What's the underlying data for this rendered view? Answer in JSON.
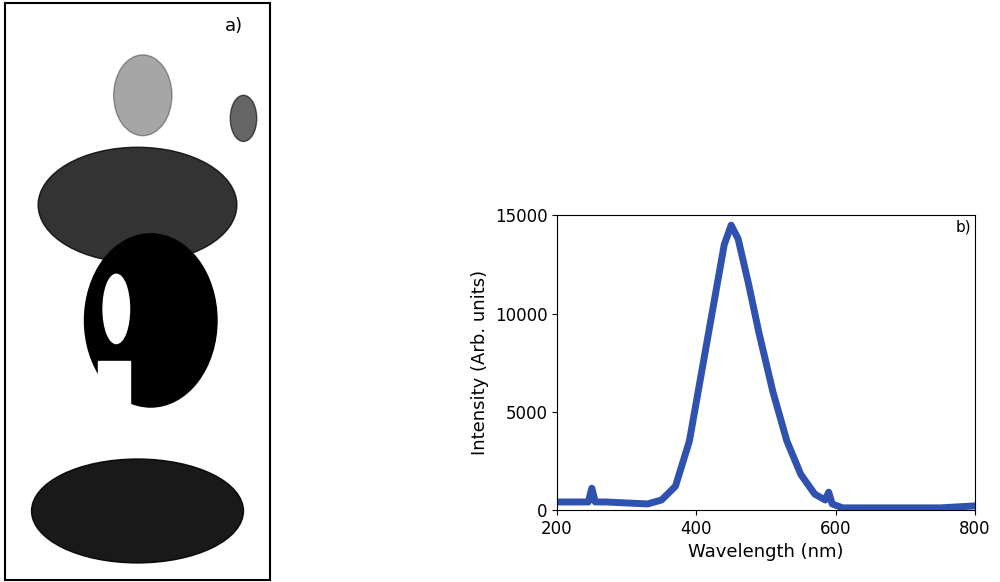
{
  "chart_data": [
    {
      "type": "image",
      "annotations": [
        "a)"
      ]
    },
    {
      "type": "line",
      "annotations": [
        "b)"
      ],
      "x_label": "Wavelength (nm)",
      "y_label": "Intensity (Arb. units)",
      "x": [
        200,
        230,
        245,
        250,
        255,
        270,
        300,
        330,
        350,
        370,
        390,
        410,
        425,
        440,
        450,
        460,
        475,
        490,
        510,
        530,
        550,
        570,
        585,
        590,
        595,
        610,
        650,
        700,
        750,
        800
      ],
      "values": [
        400,
        400,
        400,
        1100,
        400,
        400,
        350,
        300,
        500,
        1200,
        3500,
        7500,
        10500,
        13500,
        14500,
        13800,
        11500,
        9000,
        6000,
        3500,
        1800,
        800,
        500,
        900,
        300,
        100,
        100,
        100,
        100,
        200
      ],
      "color": "#2f52b0",
      "xlim": [
        200,
        800
      ],
      "xticks": [
        200,
        400,
        600,
        800
      ],
      "ylim": [
        0,
        15000
      ],
      "yticks": [
        0,
        5000,
        10000,
        15000
      ]
    }
  ]
}
